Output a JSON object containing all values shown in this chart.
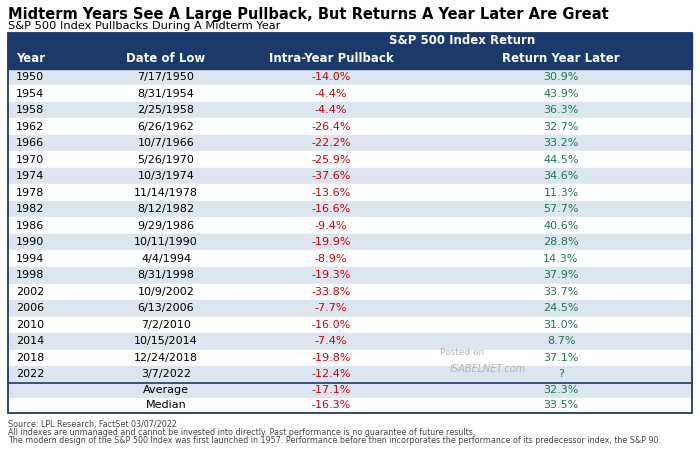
{
  "title": "Midterm Years See A Large Pullback, But Returns A Year Later Are Great",
  "subtitle": "S&P 500 Index Pullbacks During A Midterm Year",
  "col_header_group": "S&P 500 Index Return",
  "col_headers": [
    "Year",
    "Date of Low",
    "Intra-Year Pullback",
    "Return Year Later"
  ],
  "rows": [
    [
      "1950",
      "7/17/1950",
      "-14.0%",
      "30.9%"
    ],
    [
      "1954",
      "8/31/1954",
      "-4.4%",
      "43.9%"
    ],
    [
      "1958",
      "2/25/1958",
      "-4.4%",
      "36.3%"
    ],
    [
      "1962",
      "6/26/1962",
      "-26.4%",
      "32.7%"
    ],
    [
      "1966",
      "10/7/1966",
      "-22.2%",
      "33.2%"
    ],
    [
      "1970",
      "5/26/1970",
      "-25.9%",
      "44.5%"
    ],
    [
      "1974",
      "10/3/1974",
      "-37.6%",
      "34.6%"
    ],
    [
      "1978",
      "11/14/1978",
      "-13.6%",
      "11.3%"
    ],
    [
      "1982",
      "8/12/1982",
      "-16.6%",
      "57.7%"
    ],
    [
      "1986",
      "9/29/1986",
      "-9.4%",
      "40.6%"
    ],
    [
      "1990",
      "10/11/1990",
      "-19.9%",
      "28.8%"
    ],
    [
      "1994",
      "4/4/1994",
      "-8.9%",
      "14.3%"
    ],
    [
      "1998",
      "8/31/1998",
      "-19.3%",
      "37.9%"
    ],
    [
      "2002",
      "10/9/2002",
      "-33.8%",
      "33.7%"
    ],
    [
      "2006",
      "6/13/2006",
      "-7.7%",
      "24.5%"
    ],
    [
      "2010",
      "7/2/2010",
      "-16.0%",
      "31.0%"
    ],
    [
      "2014",
      "10/15/2014",
      "-7.4%",
      "8.7%"
    ],
    [
      "2018",
      "12/24/2018",
      "-19.8%",
      "37.1%"
    ],
    [
      "2022",
      "3/7/2022",
      "-12.4%",
      "?"
    ]
  ],
  "summary_rows": [
    [
      "",
      "Average",
      "-17.1%",
      "32.3%"
    ],
    [
      "",
      "Median",
      "-16.3%",
      "33.5%"
    ]
  ],
  "footer_lines": [
    "Source: LPL Research, FactSet 03/07/2022",
    "All indexes are unmanaged and cannot be invested into directly. Past performance is no guarantee of future results.",
    "The modern design of the S&P 500 Index was first launched in 1957. Performance before then incorporates the performance of its predecessor index, the S&P 90."
  ],
  "header_bg_color": "#1b3a6b",
  "header_text_color": "#ffffff",
  "row_even_color": "#dce6f1",
  "row_odd_color": "#ffffff",
  "pullback_color": "#cc0000",
  "return_color": "#1a7a4a",
  "border_color": "#1b3a6b",
  "title_color": "#000000",
  "subtitle_color": "#000000",
  "footer_color": "#444444",
  "watermark_color": "#aaaaaa",
  "fig_width": 7.0,
  "fig_height": 4.65,
  "dpi": 100
}
